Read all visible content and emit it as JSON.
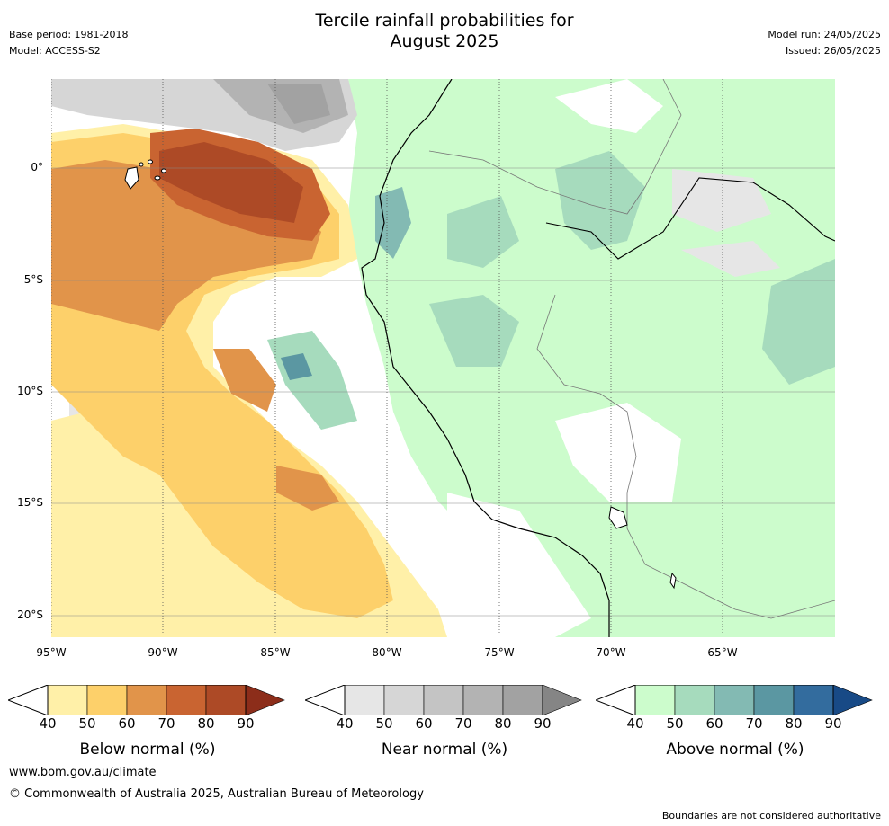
{
  "title_line1": "Tercile rainfall probabilities for",
  "title_line2": "August 2025",
  "meta_left": {
    "base_period": "Base period: 1981-2018",
    "model": "Model: ACCESS-S2"
  },
  "meta_right": {
    "model_run": "Model run: 24/05/2025",
    "issued": "Issued: 26/05/2025"
  },
  "map": {
    "lat_labels": [
      "0°",
      "5°S",
      "10°S",
      "15°S",
      "20°S"
    ],
    "lon_labels": [
      "95°W",
      "90°W",
      "85°W",
      "80°W",
      "75°W",
      "70°W",
      "65°W"
    ]
  },
  "legends": [
    {
      "title": "Below normal (%)",
      "ticks": [
        "40",
        "50",
        "60",
        "70",
        "80",
        "90"
      ],
      "colors": [
        "#fff0a8",
        "#fdd06a",
        "#e1944a",
        "#c96431",
        "#ad4a26",
        "#8c2d1a"
      ]
    },
    {
      "title": "Near normal (%)",
      "ticks": [
        "40",
        "50",
        "60",
        "70",
        "80",
        "90"
      ],
      "colors": [
        "#e6e6e6",
        "#d6d6d6",
        "#c4c4c4",
        "#b3b3b3",
        "#a2a2a2",
        "#858585"
      ]
    },
    {
      "title": "Above normal (%)",
      "ticks": [
        "40",
        "50",
        "60",
        "70",
        "80",
        "90"
      ],
      "colors": [
        "#ccfccc",
        "#a6dbbd",
        "#83bab3",
        "#5b97a2",
        "#336c9e",
        "#184a86"
      ]
    }
  ],
  "footer": {
    "url": "www.bom.gov.au/climate",
    "copyright": "© Commonwealth of Australia 2025, Australian Bureau of Meteorology",
    "disclaimer": "Boundaries are not considered authoritative"
  }
}
